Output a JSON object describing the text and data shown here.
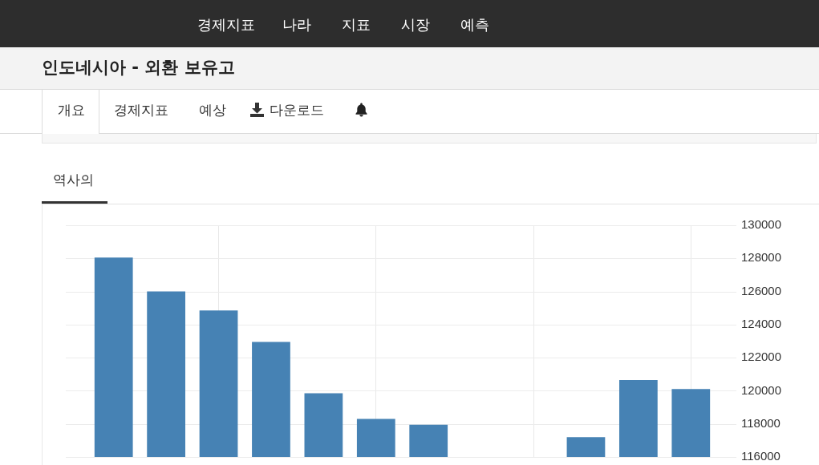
{
  "chart_data": {
    "type": "bar",
    "title": "인도네시아 - 외환 보유고",
    "annotations": [
      "경제지표",
      "나라",
      "지표",
      "시장",
      "예측",
      "개요",
      "경제지표",
      "예상",
      "다운로드",
      "역사의"
    ],
    "categories": [
      null,
      null,
      null,
      null,
      null,
      null,
      null,
      null,
      null,
      null,
      null,
      null
    ],
    "values": [
      128050,
      126000,
      124850,
      122950,
      119850,
      118300,
      117950,
      null,
      null,
      117200,
      120650,
      120100
    ],
    "color": "#4682b4",
    "ylim": [
      116000,
      130000
    ],
    "yticks": [
      116000,
      118000,
      120000,
      122000,
      124000,
      126000,
      128000,
      130000
    ],
    "grid": true,
    "tick_labels": "y"
  }
}
